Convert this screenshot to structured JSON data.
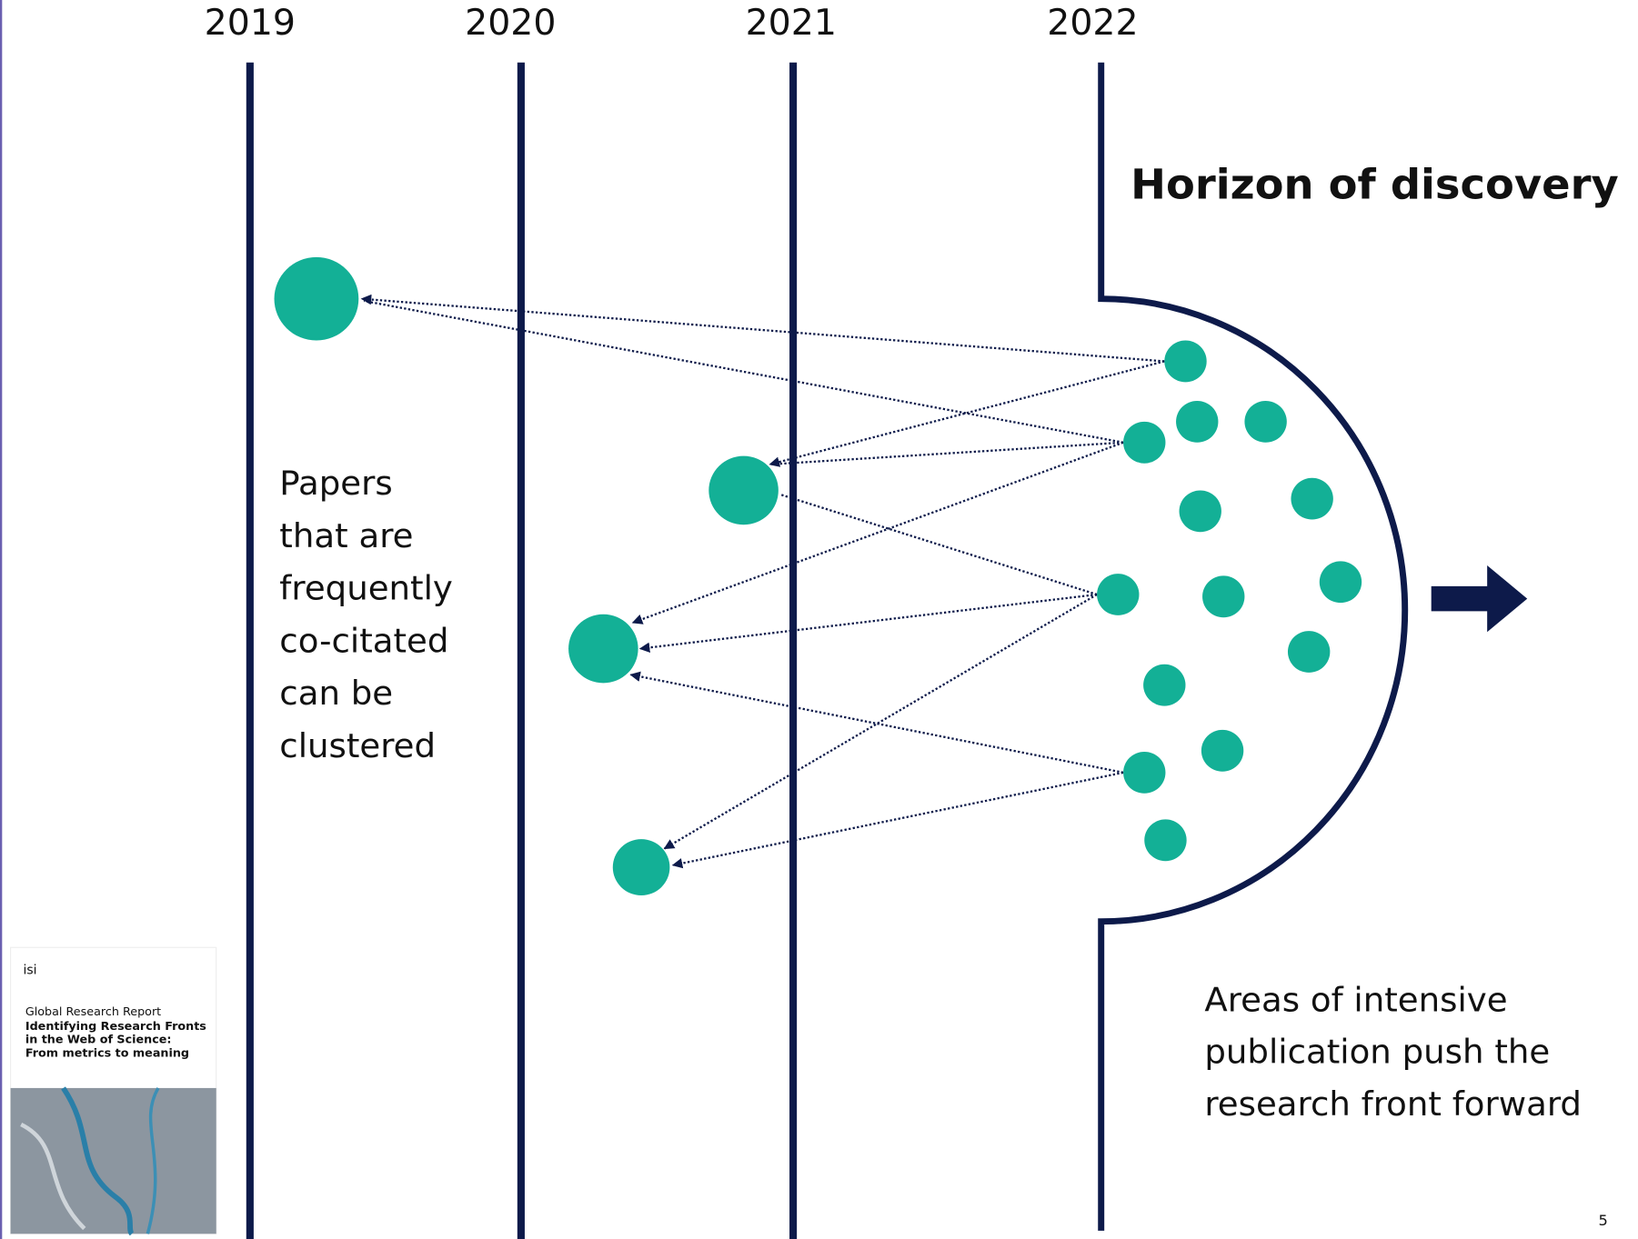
{
  "years": [
    "2019",
    "2020",
    "2021",
    "2022"
  ],
  "title": "Horizon of discovery",
  "left_text": [
    "Papers",
    "that are",
    "frequently",
    "co-citated",
    "can be",
    "clustered"
  ],
  "right_text": [
    "Areas of intensive",
    "publication push the",
    "research front forward"
  ],
  "report": {
    "logo": "isi",
    "label": "Global Research Report",
    "title": [
      "Identifying Research Fronts",
      "in the Web of Science:",
      "From metrics to meaning"
    ]
  },
  "page_number": "5"
}
